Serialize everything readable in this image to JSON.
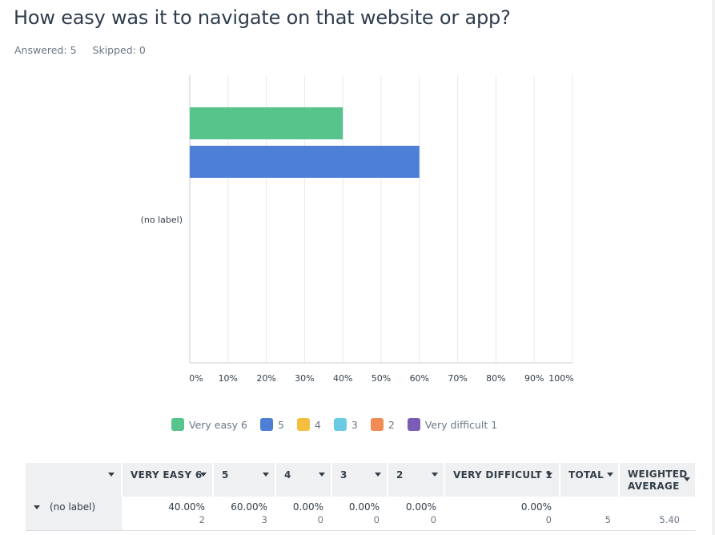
{
  "question": {
    "title": "How easy was it to navigate on that website or app?",
    "answered": "Answered: 5",
    "skipped": "Skipped: 0"
  },
  "chart_data": {
    "type": "bar",
    "orientation": "horizontal",
    "categories": [
      "(no label)"
    ],
    "series": [
      {
        "name": "Very easy  6",
        "values": [
          40
        ],
        "color": "#56c48b"
      },
      {
        "name": "5",
        "values": [
          60
        ],
        "color": "#4d7fd6"
      },
      {
        "name": "4",
        "values": [
          0
        ],
        "color": "#f4bf3f"
      },
      {
        "name": "3",
        "values": [
          0
        ],
        "color": "#6bcbe3"
      },
      {
        "name": "2",
        "values": [
          0
        ],
        "color": "#f18b55"
      },
      {
        "name": "Very difficult  1",
        "values": [
          0
        ],
        "color": "#7b5db7"
      }
    ],
    "x_ticks": [
      "0%",
      "10%",
      "20%",
      "30%",
      "40%",
      "50%",
      "60%",
      "70%",
      "80%",
      "90%",
      "100%"
    ],
    "xlim": [
      0,
      100
    ],
    "grid": true,
    "legend_position": "bottom"
  },
  "table": {
    "headers": [
      "VERY EASY  6",
      "5",
      "4",
      "3",
      "2",
      "VERY DIFFICULT  1",
      "TOTAL",
      "WEIGHTED",
      "AVERAGE"
    ],
    "row": {
      "label": "(no label)",
      "cells": [
        {
          "pct": "40.00%",
          "count": "2"
        },
        {
          "pct": "60.00%",
          "count": "3"
        },
        {
          "pct": "0.00%",
          "count": "0"
        },
        {
          "pct": "0.00%",
          "count": "0"
        },
        {
          "pct": "0.00%",
          "count": "0"
        },
        {
          "pct": "0.00%",
          "count": "0"
        }
      ],
      "total": "5",
      "weighted_average": "5.40"
    }
  }
}
